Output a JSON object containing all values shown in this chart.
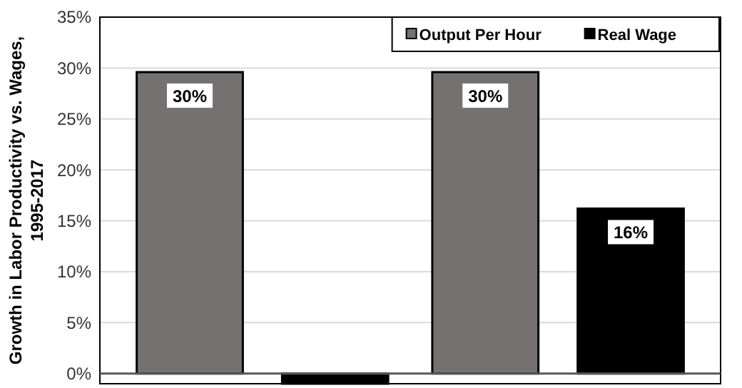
{
  "chart_data": {
    "type": "bar",
    "ylabel": "Growth in Labor Productivity vs. Wages, 1995-2017",
    "categories": [
      null,
      null
    ],
    "series": [
      {
        "name": "Output Per Hour",
        "color": "#767171",
        "values": [
          29.6,
          29.6
        ],
        "value_labels": [
          "30%",
          "30%"
        ]
      },
      {
        "name": "Real Wage",
        "color": "#000000",
        "values": [
          -1,
          16.2
        ],
        "value_labels": [
          null,
          "16%"
        ]
      }
    ],
    "ylim": [
      -1,
      35
    ],
    "yticks": [
      {
        "value": 0,
        "label": "0%"
      },
      {
        "value": 5,
        "label": "5%"
      },
      {
        "value": 10,
        "label": "10%"
      },
      {
        "value": 15,
        "label": "15%"
      },
      {
        "value": 20,
        "label": "20%"
      },
      {
        "value": 25,
        "label": "25%"
      },
      {
        "value": 30,
        "label": "30%"
      },
      {
        "value": 35,
        "label": "35%"
      }
    ],
    "grid": "y",
    "legend": "top right"
  }
}
